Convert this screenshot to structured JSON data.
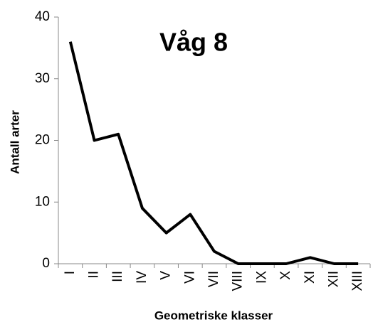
{
  "chart_data": {
    "type": "line",
    "title": "Våg 8",
    "x_label": "Geometriske klasser",
    "y_label": "Antall arter",
    "categories": [
      "I",
      "II",
      "III",
      "IV",
      "V",
      "VI",
      "VII",
      "VIII",
      "IX",
      "X",
      "XI",
      "XII",
      "XIII"
    ],
    "values": [
      36,
      20,
      21,
      9,
      5,
      8,
      2,
      0,
      0,
      0,
      1,
      0,
      0
    ],
    "color": "#000000",
    "ylim": [
      0,
      40
    ],
    "yticks": [
      0,
      10,
      20,
      30,
      40
    ],
    "grid": false
  }
}
